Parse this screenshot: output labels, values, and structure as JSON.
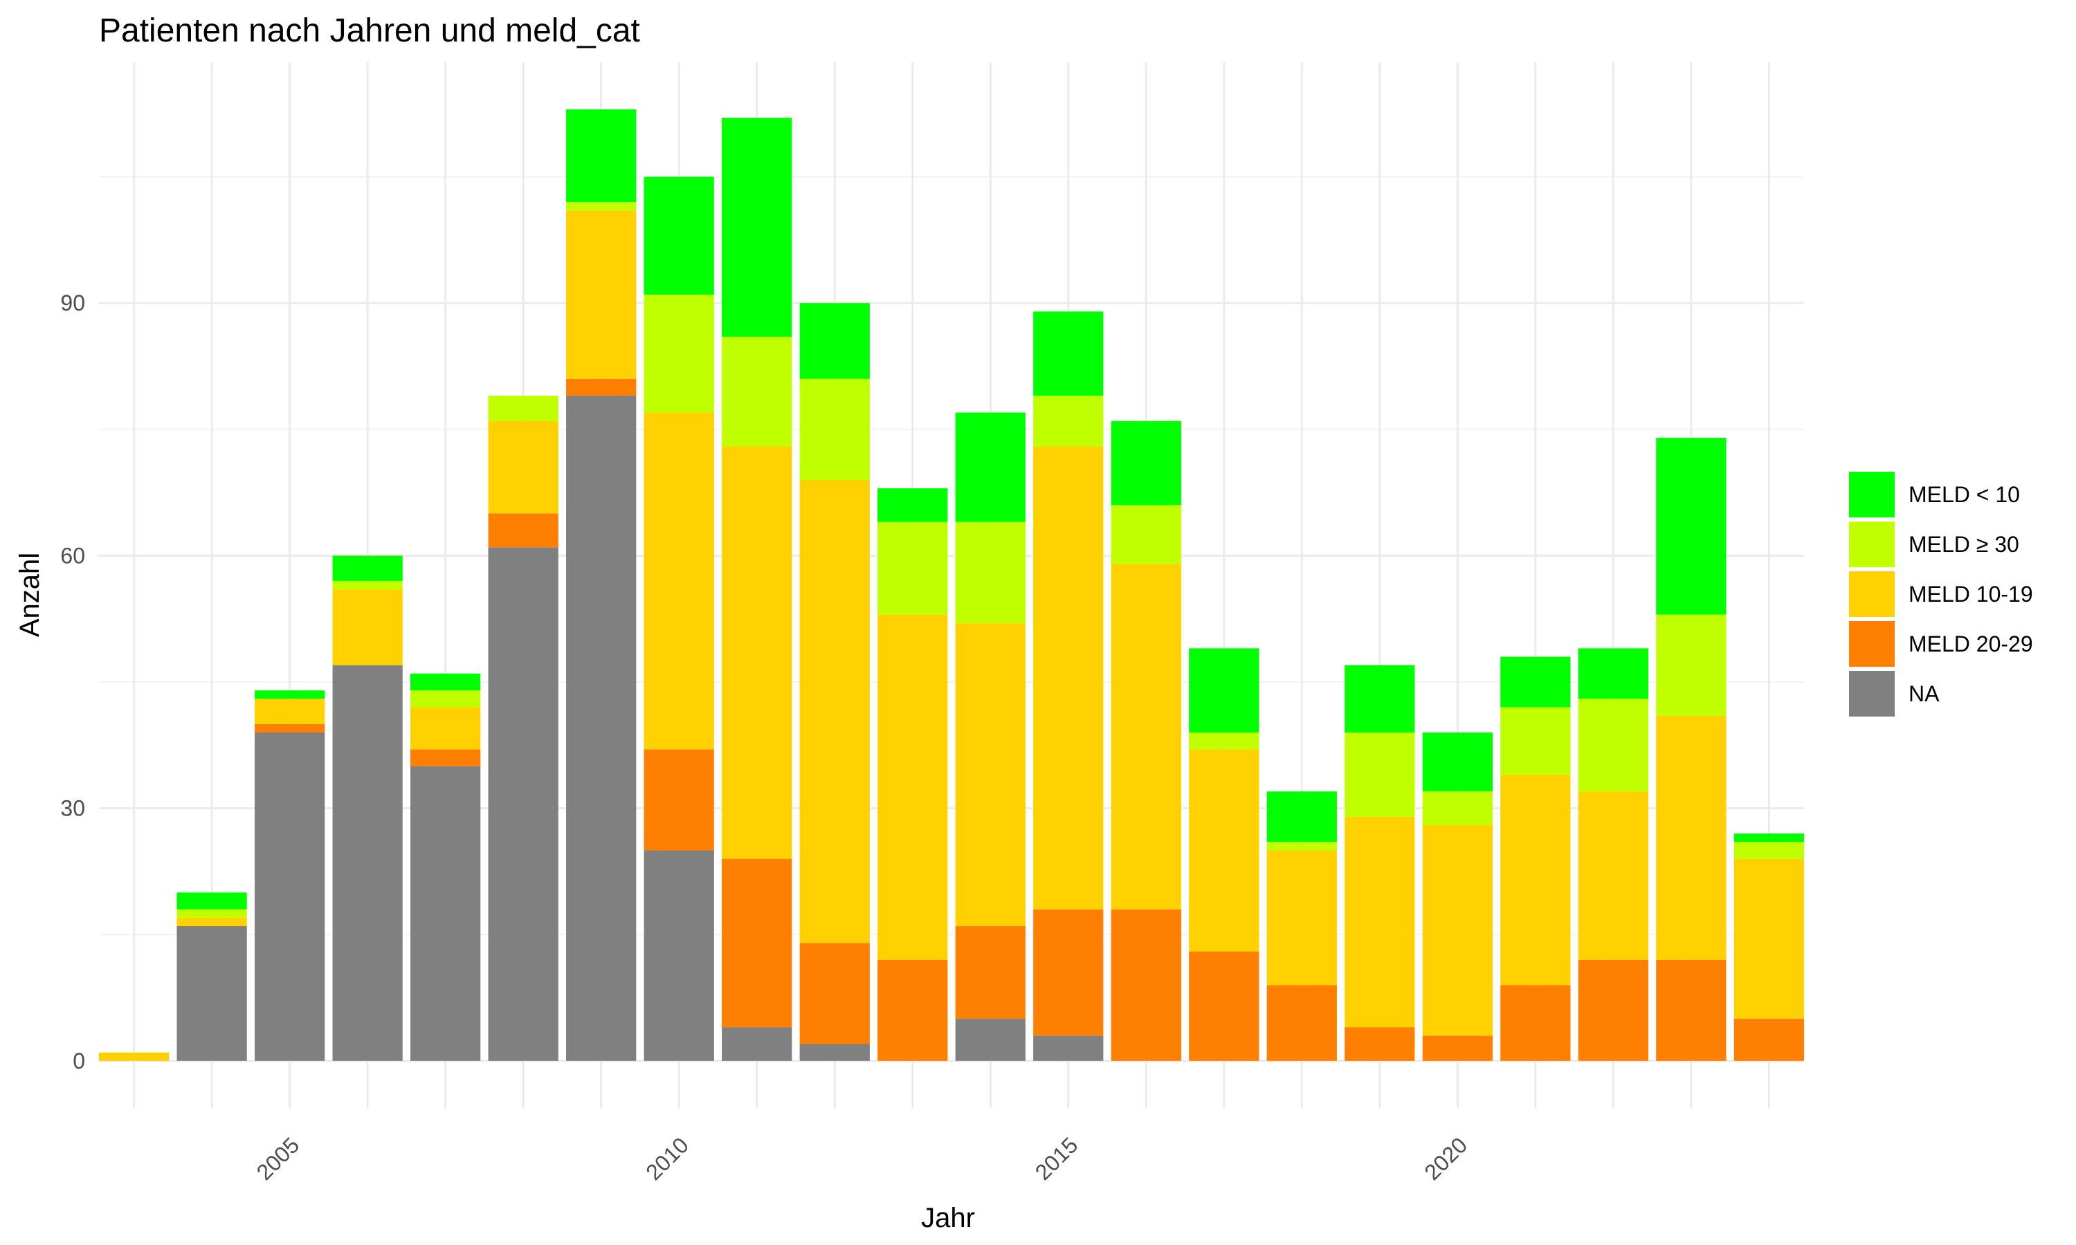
{
  "chart_data": {
    "type": "bar",
    "stacked": true,
    "title": "Patienten nach Jahren und meld_cat",
    "xlabel": "Jahr",
    "ylabel": "Anzahl",
    "x": [
      2003,
      2004,
      2005,
      2006,
      2007,
      2008,
      2009,
      2010,
      2011,
      2012,
      2013,
      2014,
      2015,
      2016,
      2017,
      2018,
      2019,
      2020,
      2021,
      2022,
      2023,
      2024
    ],
    "xticks": [
      "2005",
      "2010",
      "2015",
      "2020"
    ],
    "xtick_values": [
      2005,
      2010,
      2015,
      2020
    ],
    "yticks": [
      "0",
      "30",
      "60",
      "90"
    ],
    "ytick_values": [
      0,
      30,
      60,
      90
    ],
    "xlim": [
      2002.55,
      2024.45
    ],
    "ylim": [
      -5.6,
      118.6
    ],
    "grid": true,
    "legend_position": "right",
    "stack_order": [
      "NA",
      "MELD 20-29",
      "MELD 10-19",
      "MELD ≥ 30",
      "MELD < 10"
    ],
    "series": [
      {
        "name": "MELD < 10",
        "color": "#00FF00",
        "values": [
          0,
          2,
          1,
          3,
          2,
          0,
          11,
          14,
          26,
          9,
          4,
          13,
          10,
          10,
          10,
          6,
          8,
          7,
          6,
          6,
          21,
          1
        ]
      },
      {
        "name": "MELD ≥ 30",
        "color": "#BFFF00",
        "values": [
          0,
          1,
          0,
          1,
          2,
          3,
          1,
          14,
          13,
          12,
          11,
          12,
          6,
          7,
          2,
          1,
          10,
          4,
          8,
          11,
          12,
          2
        ]
      },
      {
        "name": "MELD 10-19",
        "color": "#FFD100",
        "values": [
          1,
          1,
          3,
          9,
          5,
          11,
          20,
          40,
          49,
          55,
          41,
          36,
          55,
          41,
          24,
          16,
          25,
          25,
          25,
          20,
          29,
          19
        ]
      },
      {
        "name": "MELD 20-29",
        "color": "#FF7F00",
        "values": [
          0,
          0,
          1,
          0,
          2,
          4,
          2,
          12,
          20,
          12,
          12,
          11,
          15,
          18,
          13,
          9,
          4,
          3,
          9,
          12,
          12,
          5
        ]
      },
      {
        "name": "NA",
        "color": "#808080",
        "values": [
          0,
          16,
          39,
          47,
          35,
          61,
          79,
          25,
          4,
          2,
          0,
          5,
          3,
          0,
          0,
          0,
          0,
          0,
          0,
          0,
          0,
          0
        ]
      }
    ]
  }
}
